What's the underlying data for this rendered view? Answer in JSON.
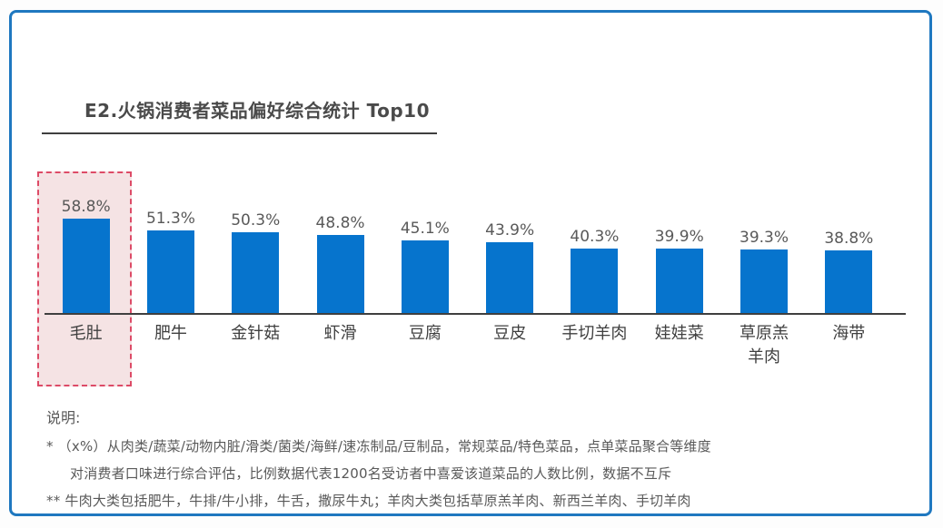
{
  "chart_data": {
    "type": "bar",
    "title": "E2.火锅消费者菜品偏好综合统计 Top10",
    "categories": [
      "毛肚",
      "肥牛",
      "金针菇",
      "虾滑",
      "豆腐",
      "豆皮",
      "手切羊肉",
      "娃娃菜",
      "草原羔\n羊肉",
      "海带"
    ],
    "values": [
      58.8,
      51.3,
      50.3,
      48.8,
      45.1,
      43.9,
      40.3,
      39.9,
      39.3,
      38.8
    ],
    "value_labels": [
      "58.8%",
      "51.3%",
      "50.3%",
      "48.8%",
      "45.1%",
      "43.9%",
      "40.3%",
      "39.9%",
      "39.3%",
      "38.8%"
    ],
    "highlighted_category": "毛肚",
    "highlighted_index": 0,
    "ylim": [
      0,
      65
    ],
    "grid": false,
    "legend": false,
    "xlabel": "",
    "ylabel": ""
  },
  "colors": {
    "bar": "#0674cd",
    "card_border": "#1f78c0",
    "highlight_fill": "#f5e3e4",
    "highlight_border": "#dd4b67",
    "axis": "#3f3f3f",
    "text": "#595959"
  },
  "notes": {
    "heading": "说明:",
    "lines": [
      {
        "text": "* （x%）从肉类/蔬菜/动物内脏/滑类/菌类/海鲜/速冻制品/豆制品，常规菜品/特色菜品，点单菜品聚合等维度",
        "indent": false
      },
      {
        "text": "对消费者口味进行综合评估，比例数据代表1200名受访者中喜爱该道菜品的人数比例，数据不互斥",
        "indent": true
      },
      {
        "text": "** 牛肉大类包括肥牛，牛排/牛小排，牛舌，撒尿牛丸；羊肉大类包括草原羔羊肉、新西兰羊肉、手切羊肉",
        "indent": false
      }
    ]
  }
}
